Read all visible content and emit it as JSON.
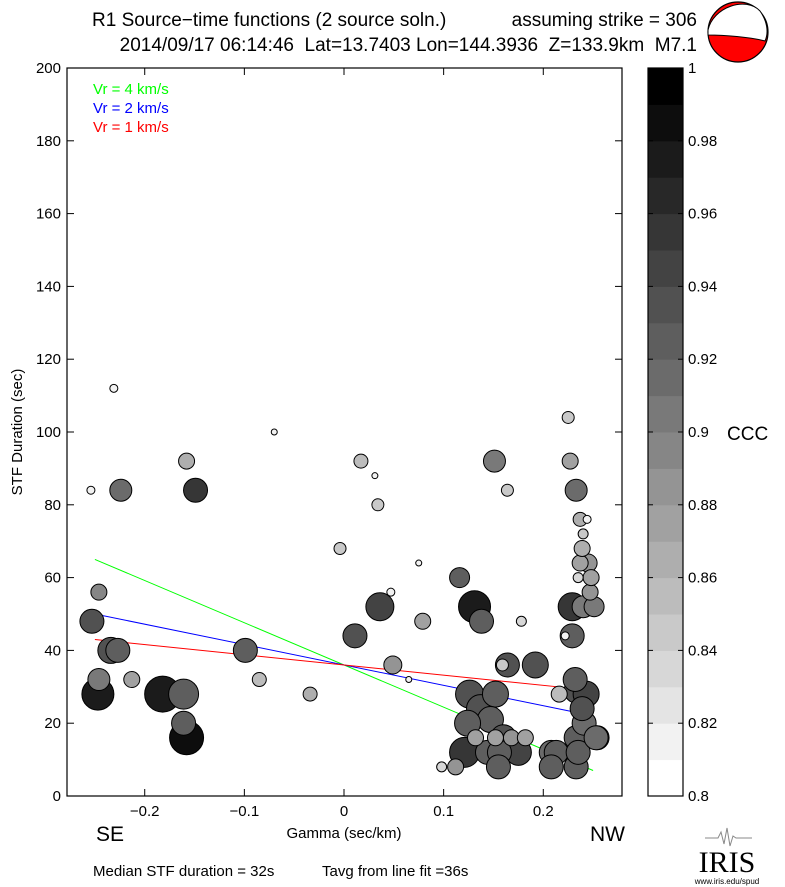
{
  "header": {
    "title": "R1 Source−time functions (2 source soln.)",
    "strike": "assuming strike = 306",
    "event": "2014/09/17 06:14:46  Lat=13.7403 Lon=144.3936  Z=133.9km  M7.1"
  },
  "footer": {
    "median": "Median STF duration = 32s",
    "tavg": "Tavg from line fit =36s",
    "logo_text": "IRIS",
    "logo_url": "www.iris.edu/spud"
  },
  "direction": {
    "left": "SE",
    "right": "NW"
  },
  "colors": {
    "beachball": "#ff0000",
    "vr4": "#00ff00",
    "vr2": "#0000ff",
    "vr1": "#ff0000"
  },
  "chart_data": {
    "type": "scatter",
    "xlabel": "Gamma (sec/km)",
    "ylabel": "STF Duration (sec)",
    "xlim": [
      -0.278,
      0.279
    ],
    "ylim": [
      0,
      200
    ],
    "xticks": [
      "-0.2",
      "-0.1",
      "0",
      "0.1",
      "0.2"
    ],
    "xtick_values": [
      -0.2,
      -0.1,
      0,
      0.1,
      0.2
    ],
    "yticks": [
      "0",
      "20",
      "40",
      "60",
      "80",
      "100",
      "120",
      "140",
      "160",
      "180",
      "200"
    ],
    "grid": false,
    "legend_position": "top-left",
    "colorbar": {
      "label": "CCC",
      "range": [
        0.8,
        1
      ],
      "ticks": [
        "0.8",
        "0.82",
        "0.84",
        "0.86",
        "0.88",
        "0.9",
        "0.92",
        "0.94",
        "0.96",
        "0.98",
        "1"
      ],
      "bands": 20,
      "colormap": "gray reversed (white=0.8, black=1)"
    },
    "lines": [
      {
        "name": "Vr = 4 km/s",
        "color": "#00ff00",
        "x": [
          -0.25,
          0.25
        ],
        "y": [
          65,
          7
        ]
      },
      {
        "name": "Vr = 2 km/s",
        "color": "#0000ff",
        "x": [
          -0.25,
          0.25
        ],
        "y": [
          50,
          22
        ]
      },
      {
        "name": "Vr = 1 km/s",
        "color": "#ff0000",
        "x": [
          -0.25,
          0.25
        ],
        "y": [
          43,
          29
        ]
      }
    ],
    "points_fields": [
      "gamma",
      "duration",
      "ccc",
      "size"
    ],
    "points": [
      [
        -0.231,
        112,
        0.81,
        4
      ],
      [
        -0.254,
        84,
        0.81,
        4
      ],
      [
        -0.224,
        84,
        0.91,
        11
      ],
      [
        -0.158,
        92,
        0.86,
        8
      ],
      [
        -0.149,
        84,
        0.95,
        12
      ],
      [
        -0.07,
        100,
        0.81,
        3
      ],
      [
        0.017,
        92,
        0.85,
        7
      ],
      [
        0.031,
        88,
        0.81,
        3
      ],
      [
        0.034,
        80,
        0.84,
        6
      ],
      [
        0.151,
        92,
        0.9,
        11
      ],
      [
        0.164,
        84,
        0.84,
        6
      ],
      [
        0.225,
        104,
        0.84,
        6
      ],
      [
        0.227,
        92,
        0.87,
        8
      ],
      [
        0.233,
        84,
        0.91,
        11
      ],
      [
        -0.004,
        68,
        0.84,
        6
      ],
      [
        0.075,
        64,
        0.81,
        3
      ],
      [
        -0.246,
        56,
        0.89,
        8
      ],
      [
        -0.253,
        48,
        0.93,
        12
      ],
      [
        0.116,
        60,
        0.92,
        10
      ],
      [
        0.036,
        52,
        0.94,
        14
      ],
      [
        0.047,
        56,
        0.81,
        4
      ],
      [
        0.131,
        52,
        0.97,
        16
      ],
      [
        0.138,
        48,
        0.92,
        12
      ],
      [
        0.079,
        48,
        0.87,
        8
      ],
      [
        0.178,
        48,
        0.83,
        5
      ],
      [
        0.011,
        44,
        0.93,
        12
      ],
      [
        -0.234,
        40,
        0.93,
        13
      ],
      [
        -0.227,
        40,
        0.92,
        12
      ],
      [
        -0.099,
        40,
        0.92,
        12
      ],
      [
        -0.213,
        32,
        0.87,
        8
      ],
      [
        -0.085,
        32,
        0.85,
        7
      ],
      [
        -0.246,
        32,
        0.9,
        11
      ],
      [
        -0.247,
        28,
        0.97,
        16
      ],
      [
        -0.182,
        28,
        0.97,
        18
      ],
      [
        -0.161,
        28,
        0.92,
        15
      ],
      [
        -0.161,
        20,
        0.92,
        12
      ],
      [
        -0.158,
        16,
        0.98,
        17
      ],
      [
        -0.034,
        28,
        0.86,
        7
      ],
      [
        0.049,
        36,
        0.88,
        9
      ],
      [
        0.065,
        32,
        0.81,
        3
      ],
      [
        0.164,
        36,
        0.93,
        12
      ],
      [
        0.192,
        36,
        0.93,
        13
      ],
      [
        0.159,
        36,
        0.84,
        6
      ],
      [
        0.126,
        28,
        0.93,
        14
      ],
      [
        0.152,
        28,
        0.92,
        13
      ],
      [
        0.137,
        24,
        0.93,
        14
      ],
      [
        0.147,
        21,
        0.92,
        13
      ],
      [
        0.124,
        20,
        0.92,
        13
      ],
      [
        0.121,
        12,
        0.95,
        15
      ],
      [
        0.144,
        12,
        0.92,
        12
      ],
      [
        0.156,
        12,
        0.92,
        12
      ],
      [
        0.155,
        8,
        0.92,
        12
      ],
      [
        0.16,
        16,
        0.93,
        13
      ],
      [
        0.175,
        12,
        0.94,
        13
      ],
      [
        0.132,
        16,
        0.87,
        8
      ],
      [
        0.168,
        16,
        0.88,
        8
      ],
      [
        0.182,
        16,
        0.87,
        8
      ],
      [
        0.152,
        16,
        0.87,
        8
      ],
      [
        0.112,
        8,
        0.88,
        8
      ],
      [
        0.098,
        8,
        0.83,
        5
      ],
      [
        0.208,
        12,
        0.91,
        12
      ],
      [
        0.213,
        12,
        0.92,
        12
      ],
      [
        0.208,
        8,
        0.92,
        12
      ],
      [
        0.233,
        8,
        0.92,
        12
      ],
      [
        0.233,
        16,
        0.92,
        12
      ],
      [
        0.235,
        12,
        0.92,
        12
      ],
      [
        0.241,
        20,
        0.91,
        12
      ],
      [
        0.254,
        16,
        0.94,
        12
      ],
      [
        0.253,
        16,
        0.91,
        12
      ],
      [
        0.216,
        28,
        0.85,
        8
      ],
      [
        0.232,
        32,
        0.92,
        12
      ],
      [
        0.234,
        29,
        0.93,
        13
      ],
      [
        0.243,
        28,
        0.94,
        13
      ],
      [
        0.239,
        24,
        0.93,
        12
      ],
      [
        0.229,
        44,
        0.92,
        12
      ],
      [
        0.222,
        44,
        0.81,
        4
      ],
      [
        0.229,
        52,
        0.95,
        14
      ],
      [
        0.24,
        52,
        0.9,
        11
      ],
      [
        0.251,
        52,
        0.9,
        10
      ],
      [
        0.247,
        56,
        0.88,
        8
      ],
      [
        0.248,
        60,
        0.87,
        8
      ],
      [
        0.245,
        64,
        0.88,
        9
      ],
      [
        0.235,
        60,
        0.83,
        5
      ],
      [
        0.237,
        64,
        0.87,
        8
      ],
      [
        0.239,
        68,
        0.86,
        8
      ],
      [
        0.24,
        72,
        0.84,
        5
      ],
      [
        0.237,
        76,
        0.86,
        7
      ],
      [
        0.244,
        76,
        0.81,
        4
      ]
    ]
  }
}
